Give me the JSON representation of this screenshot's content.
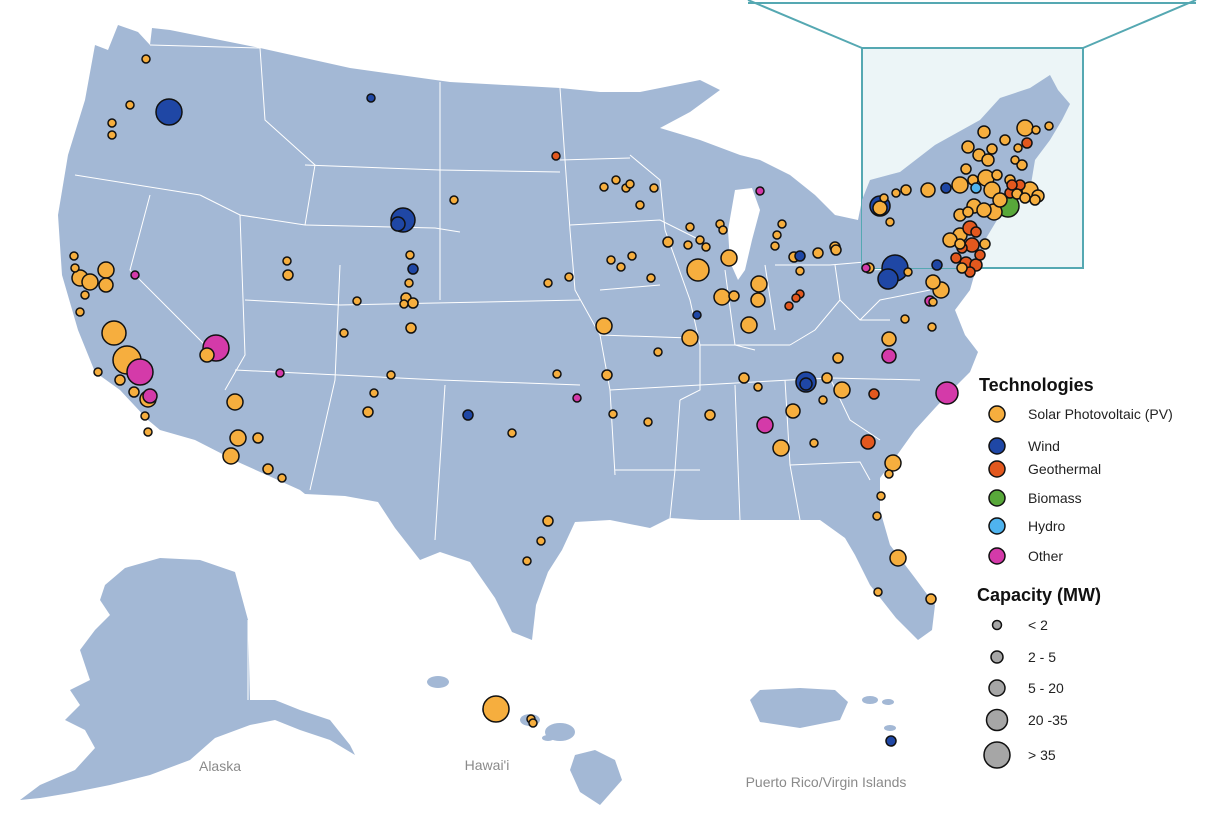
{
  "colors": {
    "land": "#a3b8d5",
    "state_border": "#ffffff",
    "inset_bg": "#e9f3f6",
    "inset_border": "#55a8b2",
    "marker_stroke": "#111111",
    "capacity_marker": "#a6a6a6"
  },
  "legend": {
    "technologies_title": "Technologies",
    "technologies": [
      {
        "name": "Solar Photovoltaic (PV)",
        "color": "#f6ae3e"
      },
      {
        "name": "Wind",
        "color": "#1f47a5"
      },
      {
        "name": "Geothermal",
        "color": "#e3581e"
      },
      {
        "name": "Biomass",
        "color": "#58a83a"
      },
      {
        "name": "Hydro",
        "color": "#4fb3ee"
      },
      {
        "name": "Other",
        "color": "#d43aa9"
      }
    ],
    "capacity_title": "Capacity (MW)",
    "capacity": [
      "< 2",
      "2 - 5",
      "5 - 20",
      "20 -35",
      "> 35"
    ]
  },
  "region_labels": {
    "alaska": "Alaska",
    "hawaii": "Hawai'i",
    "puerto_rico": "Puerto Rico/Virgin Islands"
  }
}
